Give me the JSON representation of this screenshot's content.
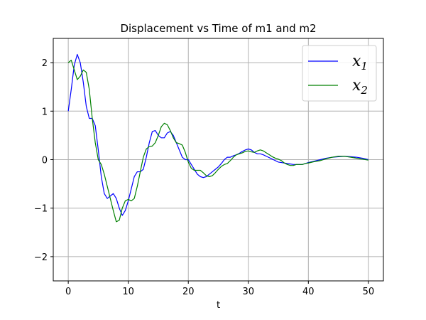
{
  "chart_data": {
    "type": "line",
    "title": "Displacement vs Time of m1 and m2",
    "xlabel": "t",
    "ylabel": "",
    "xlim": [
      -2.5,
      52.5
    ],
    "ylim": [
      -2.5,
      2.5
    ],
    "xticks": [
      0,
      10,
      20,
      30,
      40,
      50
    ],
    "yticks": [
      -2,
      -1,
      0,
      1,
      2
    ],
    "xtick_labels": [
      "0",
      "10",
      "20",
      "30",
      "40",
      "50"
    ],
    "ytick_labels": [
      "−2",
      "−1",
      "0",
      "1",
      "2"
    ],
    "grid": true,
    "legend_position": "top-right",
    "series": [
      {
        "name": "x1",
        "legend_base": "x",
        "legend_sub": "1",
        "color": "#0000ff",
        "x": [
          0,
          0.5,
          1,
          1.5,
          2,
          2.5,
          3,
          3.5,
          4,
          4.5,
          5,
          5.5,
          6,
          6.5,
          7,
          7.5,
          8,
          8.5,
          9,
          9.5,
          10,
          10.5,
          11,
          11.5,
          12,
          12.5,
          13,
          13.5,
          14,
          14.5,
          15,
          15.5,
          16,
          16.5,
          17,
          17.5,
          18,
          18.5,
          19,
          19.5,
          20,
          20.5,
          21,
          21.5,
          22,
          22.5,
          23,
          23.5,
          24,
          24.5,
          25,
          25.5,
          26,
          26.5,
          27,
          27.5,
          28,
          28.5,
          29,
          29.5,
          30,
          30.5,
          31,
          31.5,
          32,
          32.5,
          33,
          33.5,
          34,
          34.5,
          35,
          35.5,
          36,
          36.5,
          37,
          37.5,
          38,
          38.5,
          39,
          39.5,
          40,
          41,
          42,
          43,
          44,
          45,
          46,
          47,
          48,
          49,
          50
        ],
        "y": [
          1.0,
          1.45,
          1.95,
          2.17,
          2.0,
          1.6,
          1.1,
          0.85,
          0.85,
          0.7,
          0.2,
          -0.35,
          -0.7,
          -0.8,
          -0.75,
          -0.7,
          -0.8,
          -1.0,
          -1.15,
          -1.05,
          -0.85,
          -0.6,
          -0.35,
          -0.25,
          -0.25,
          -0.2,
          0.05,
          0.35,
          0.58,
          0.6,
          0.5,
          0.45,
          0.45,
          0.55,
          0.58,
          0.5,
          0.35,
          0.2,
          0.05,
          0.0,
          0.0,
          -0.1,
          -0.2,
          -0.3,
          -0.35,
          -0.37,
          -0.35,
          -0.3,
          -0.25,
          -0.2,
          -0.15,
          -0.08,
          0.0,
          0.05,
          0.05,
          0.08,
          0.1,
          0.13,
          0.17,
          0.2,
          0.22,
          0.2,
          0.15,
          0.12,
          0.12,
          0.1,
          0.07,
          0.04,
          0.01,
          -0.02,
          -0.05,
          -0.06,
          -0.07,
          -0.08,
          -0.09,
          -0.1,
          -0.1,
          -0.1,
          -0.1,
          -0.08,
          -0.06,
          -0.03,
          0.0,
          0.03,
          0.05,
          0.06,
          0.07,
          0.06,
          0.05,
          0.03,
          0.0
        ]
      },
      {
        "name": "x2",
        "legend_base": "x",
        "legend_sub": "2",
        "color": "#008000",
        "x": [
          0,
          0.5,
          1,
          1.5,
          2,
          2.5,
          3,
          3.5,
          4,
          4.5,
          5,
          5.5,
          6,
          6.5,
          7,
          7.5,
          8,
          8.5,
          9,
          9.5,
          10,
          10.5,
          11,
          11.5,
          12,
          12.5,
          13,
          13.5,
          14,
          14.5,
          15,
          15.5,
          16,
          16.5,
          17,
          17.5,
          18,
          18.5,
          19,
          19.5,
          20,
          20.5,
          21,
          21.5,
          22,
          22.5,
          23,
          23.5,
          24,
          24.5,
          25,
          25.5,
          26,
          26.5,
          27,
          27.5,
          28,
          28.5,
          29,
          29.5,
          30,
          30.5,
          31,
          31.5,
          32,
          32.5,
          33,
          33.5,
          34,
          34.5,
          35,
          35.5,
          36,
          36.5,
          37,
          37.5,
          38,
          38.5,
          39,
          39.5,
          40,
          41,
          42,
          43,
          44,
          45,
          46,
          47,
          48,
          49,
          50
        ],
        "y": [
          2.0,
          2.05,
          1.85,
          1.65,
          1.72,
          1.85,
          1.8,
          1.45,
          0.85,
          0.35,
          0.0,
          -0.1,
          -0.3,
          -0.55,
          -0.8,
          -1.05,
          -1.28,
          -1.25,
          -1.0,
          -0.85,
          -0.82,
          -0.85,
          -0.8,
          -0.55,
          -0.25,
          0.05,
          0.22,
          0.27,
          0.28,
          0.35,
          0.5,
          0.68,
          0.75,
          0.72,
          0.6,
          0.45,
          0.35,
          0.33,
          0.3,
          0.15,
          -0.05,
          -0.18,
          -0.22,
          -0.22,
          -0.22,
          -0.27,
          -0.33,
          -0.35,
          -0.33,
          -0.27,
          -0.2,
          -0.14,
          -0.1,
          -0.08,
          -0.02,
          0.05,
          0.1,
          0.12,
          0.14,
          0.17,
          0.18,
          0.16,
          0.15,
          0.18,
          0.2,
          0.18,
          0.14,
          0.1,
          0.06,
          0.03,
          0.01,
          -0.02,
          -0.07,
          -0.1,
          -0.12,
          -0.12,
          -0.1,
          -0.1,
          -0.1,
          -0.08,
          -0.07,
          -0.04,
          -0.02,
          0.02,
          0.05,
          0.07,
          0.07,
          0.05,
          0.03,
          0.01,
          -0.01
        ]
      }
    ]
  }
}
